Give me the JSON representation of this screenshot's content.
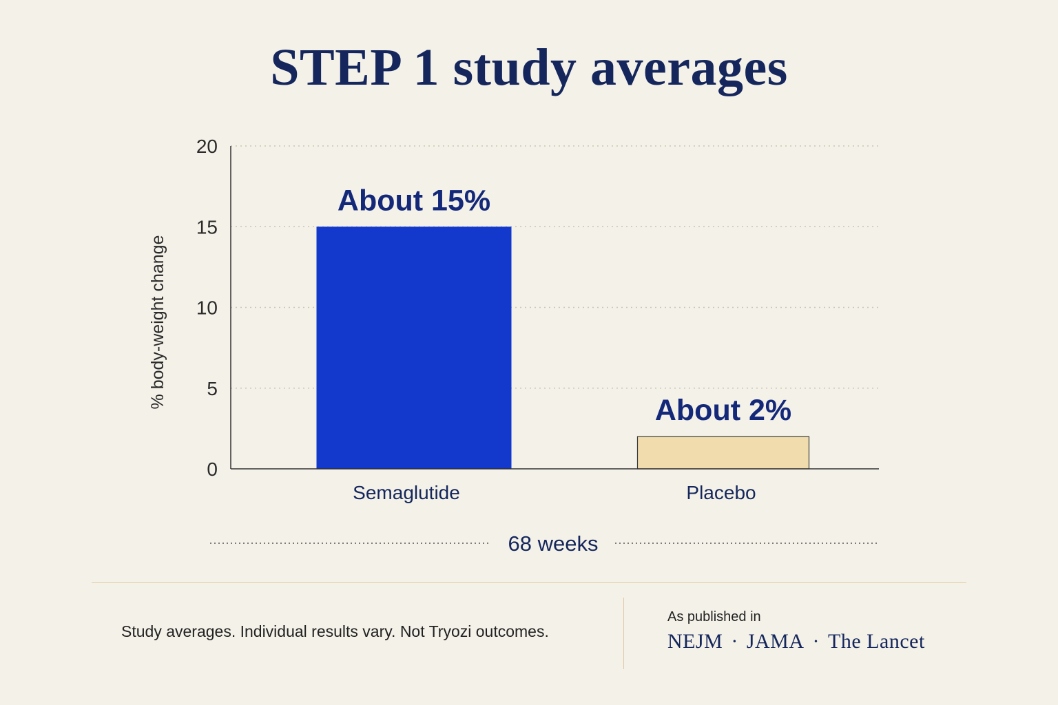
{
  "title": "STEP 1 study averages",
  "chart_data": {
    "type": "bar",
    "title": "STEP 1 study averages",
    "ylabel": "% body-weight change",
    "xlabel": "68 weeks",
    "ylim": [
      0,
      20
    ],
    "yticks": [
      0,
      5,
      10,
      15,
      20
    ],
    "grid": true,
    "categories": [
      "Semaglutide",
      "Placebo"
    ],
    "values": [
      15,
      2
    ],
    "data_labels": [
      "About 15%",
      "About 2%"
    ],
    "colors": [
      "#1238cc",
      "#f0dcac"
    ]
  },
  "footer": {
    "disclaimer": "Study averages. Individual results vary. Not Tryozi outcomes.",
    "published_label": "As published in",
    "journals": [
      "NEJM",
      "JAMA",
      "The Lancet"
    ],
    "journal_separator": "·"
  }
}
